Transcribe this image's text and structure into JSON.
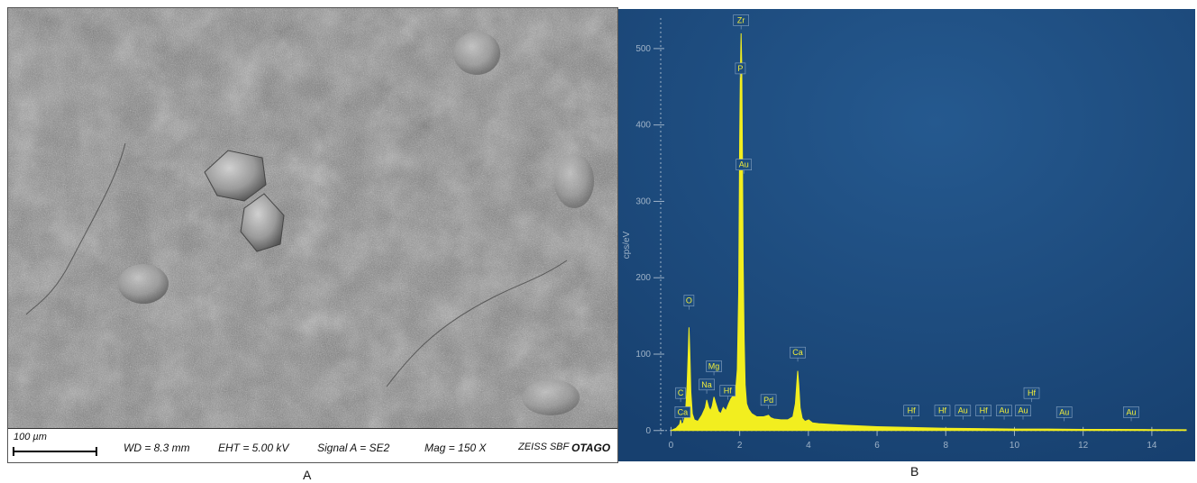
{
  "panel_a": {
    "label": "A",
    "scalebar": "100 µm",
    "wd": "WD =  8.3 mm",
    "eht": "EHT =  5.00 kV",
    "signal": "Signal A = SE2",
    "mag": "Mag =     150 X",
    "instrument": "ZEISS SBF",
    "institution": "OTAGO"
  },
  "panel_b": {
    "label": "B"
  },
  "chart_data": {
    "type": "area",
    "title": "",
    "xlabel": "",
    "ylabel": "cps/eV",
    "xlim": [
      -0.3,
      15
    ],
    "ylim": [
      -5,
      540
    ],
    "xticks": [
      0,
      2,
      4,
      6,
      8,
      10,
      12,
      14
    ],
    "yticks": [
      0,
      100,
      200,
      300,
      400,
      500
    ],
    "background_color": "#1b4a80",
    "fill_color": "#f2ee1f",
    "grid": false,
    "series": [
      {
        "x": [
          0.0,
          0.15,
          0.25,
          0.28,
          0.31,
          0.36,
          0.42,
          0.47,
          0.5,
          0.525,
          0.55,
          0.58,
          0.62,
          0.68,
          0.78,
          0.9,
          1.0,
          1.04,
          1.1,
          1.15,
          1.2,
          1.25,
          1.3,
          1.38,
          1.45,
          1.52,
          1.6,
          1.68,
          1.75,
          1.82,
          1.88,
          1.93,
          1.97,
          2.0,
          2.02,
          2.04,
          2.06,
          2.08,
          2.1,
          2.13,
          2.16,
          2.2,
          2.26,
          2.35,
          2.5,
          2.7,
          2.84,
          2.9,
          3.0,
          3.2,
          3.4,
          3.55,
          3.62,
          3.66,
          3.69,
          3.72,
          3.76,
          3.82,
          3.9,
          4.01,
          4.12,
          4.3,
          5.0,
          6.0,
          7.0,
          8.0,
          9.0,
          10.0,
          11.0,
          12.0,
          13.0,
          14.0,
          15.0
        ],
        "y": [
          0,
          3,
          8,
          14,
          8,
          10,
          20,
          60,
          100,
          135,
          100,
          50,
          22,
          14,
          12,
          20,
          30,
          40,
          30,
          26,
          32,
          44,
          36,
          25,
          22,
          30,
          26,
          35,
          42,
          46,
          52,
          80,
          180,
          380,
          470,
          520,
          480,
          360,
          220,
          120,
          60,
          35,
          28,
          22,
          18,
          18,
          20,
          17,
          15,
          14,
          14,
          18,
          35,
          60,
          78,
          60,
          30,
          16,
          12,
          14,
          10,
          9,
          7,
          5,
          4,
          3,
          2.5,
          2,
          2,
          1.5,
          1.5,
          1.2,
          1
        ]
      }
    ],
    "peak_labels": [
      {
        "label": "Zr",
        "x": 2.04,
        "y": 530
      },
      {
        "label": "P",
        "x": 2.02,
        "y": 467
      },
      {
        "label": "Au",
        "x": 2.12,
        "y": 341
      },
      {
        "label": "O",
        "x": 0.525,
        "y": 163
      },
      {
        "label": "Mg",
        "x": 1.25,
        "y": 77
      },
      {
        "label": "Na",
        "x": 1.04,
        "y": 53
      },
      {
        "label": "Hf",
        "x": 1.65,
        "y": 45
      },
      {
        "label": "C",
        "x": 0.28,
        "y": 42
      },
      {
        "label": "Ca",
        "x": 0.34,
        "y": 17
      },
      {
        "label": "Pd",
        "x": 2.84,
        "y": 33
      },
      {
        "label": "Ca",
        "x": 3.69,
        "y": 95
      },
      {
        "label": "Hf",
        "x": 7.0,
        "y": 19
      },
      {
        "label": "Hf",
        "x": 7.9,
        "y": 19
      },
      {
        "label": "Au",
        "x": 8.5,
        "y": 19
      },
      {
        "label": "Hf",
        "x": 9.1,
        "y": 19
      },
      {
        "label": "Au",
        "x": 9.7,
        "y": 19
      },
      {
        "label": "Au",
        "x": 10.25,
        "y": 19
      },
      {
        "label": "Hf",
        "x": 10.5,
        "y": 42
      },
      {
        "label": "Au",
        "x": 11.45,
        "y": 17
      },
      {
        "label": "Au",
        "x": 13.4,
        "y": 17
      }
    ]
  }
}
